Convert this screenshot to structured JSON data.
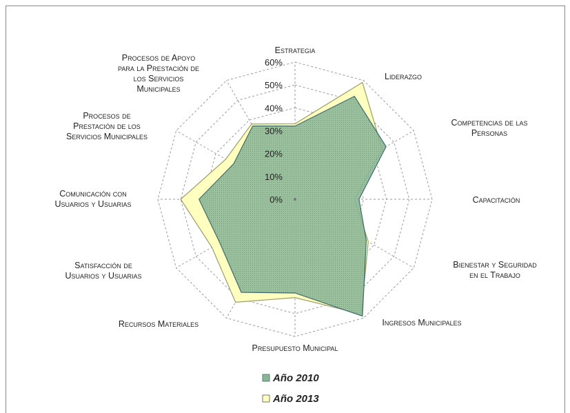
{
  "chart_data": {
    "type": "radar",
    "categories": [
      "Estrategia",
      "Liderazgo",
      "Competencias de las\nPersonas",
      "Capacitación",
      "Bienestar y Seguridad\nen el Trabajo",
      "Ingresos Municipales",
      "Presupuesto Municipal",
      "Recursos Materiales",
      "Satisfacción de\nUsuarios y Usuarias",
      "Comunicación con\nUsuarios y Usuarias",
      "Procesos de\nPrestación de los\nServicios Municipales",
      "Procesos de Apoyo\npara la Prestación de\nlos Servicios\nMunicipales"
    ],
    "series": [
      {
        "name": "Año 2010",
        "color": "#8fb99a",
        "values": [
          32,
          52,
          46,
          28,
          36,
          59,
          41,
          47,
          38,
          42,
          31,
          37
        ]
      },
      {
        "name": "Año 2013",
        "color": "#ffffc0",
        "values": [
          33,
          59,
          44,
          26,
          37,
          58,
          43,
          52,
          42,
          50,
          35,
          38
        ]
      }
    ],
    "ylim": [
      0,
      60
    ],
    "yticks": [
      {
        "value": 0,
        "label": "0%"
      },
      {
        "value": 10,
        "label": "10%"
      },
      {
        "value": 20,
        "label": "20%"
      },
      {
        "value": 30,
        "label": "30%"
      },
      {
        "value": 40,
        "label": "40%"
      },
      {
        "value": 50,
        "label": "50%"
      },
      {
        "value": 60,
        "label": "60%"
      }
    ],
    "grid": true,
    "legend": "bottom"
  }
}
